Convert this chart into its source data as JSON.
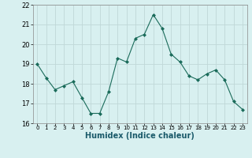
{
  "x": [
    0,
    1,
    2,
    3,
    4,
    5,
    6,
    7,
    8,
    9,
    10,
    11,
    12,
    13,
    14,
    15,
    16,
    17,
    18,
    19,
    20,
    21,
    22,
    23
  ],
  "y": [
    19.0,
    18.3,
    17.7,
    17.9,
    18.1,
    17.3,
    16.5,
    16.5,
    17.6,
    19.3,
    19.1,
    20.3,
    20.5,
    21.5,
    20.8,
    19.5,
    19.1,
    18.4,
    18.2,
    18.5,
    18.7,
    18.2,
    17.1,
    16.7
  ],
  "line_color": "#1a6b5a",
  "marker": "D",
  "marker_size": 2,
  "bg_color": "#d8f0f0",
  "grid_color": "#c0d8d8",
  "xlabel": "Humidex (Indice chaleur)",
  "ylim": [
    16,
    22
  ],
  "xlim": [
    -0.5,
    23.5
  ],
  "yticks": [
    16,
    17,
    18,
    19,
    20,
    21,
    22
  ],
  "xticks": [
    0,
    1,
    2,
    3,
    4,
    5,
    6,
    7,
    8,
    9,
    10,
    11,
    12,
    13,
    14,
    15,
    16,
    17,
    18,
    19,
    20,
    21,
    22,
    23
  ],
  "xlabel_fontsize": 7,
  "xlabel_color": "#1a5a6a",
  "tick_fontsize": 5,
  "ytick_fontsize": 6
}
